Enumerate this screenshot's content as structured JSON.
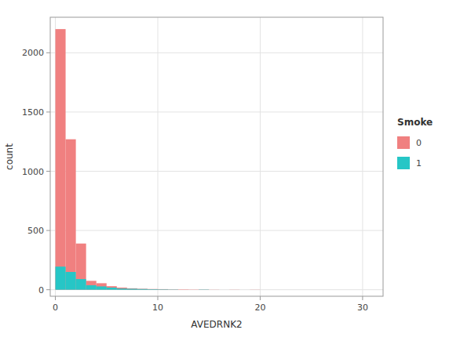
{
  "chart_data": {
    "type": "histogram",
    "xlabel": "AVEDRNK2",
    "ylabel": "count",
    "legend_title": "Smoke",
    "series": [
      {
        "name": "0",
        "color": "#F08080",
        "bins": [
          0,
          1,
          2,
          3,
          4,
          5,
          6,
          7,
          8,
          9,
          10,
          11,
          12,
          13,
          14,
          15,
          16,
          17,
          18,
          19,
          20
        ],
        "values": [
          2200,
          1270,
          390,
          75,
          55,
          30,
          18,
          12,
          8,
          6,
          5,
          3,
          3,
          2,
          2,
          1,
          0,
          1,
          0,
          1
        ]
      },
      {
        "name": "1",
        "color": "#26C6C6",
        "bins": [
          0,
          1,
          2,
          3,
          4,
          5,
          6,
          7,
          8,
          9,
          10,
          11,
          12,
          13,
          14,
          15
        ],
        "values": [
          195,
          150,
          90,
          38,
          28,
          18,
          10,
          8,
          6,
          4,
          3,
          2,
          0,
          0,
          2
        ]
      }
    ],
    "xlim": [
      -0.5,
      32
    ],
    "ylim": [
      -55,
      2300
    ],
    "xticks": [
      0,
      10,
      20,
      30
    ],
    "yticks": [
      0,
      500,
      1000,
      1500,
      2000
    ],
    "grid": true,
    "legend": "right"
  }
}
